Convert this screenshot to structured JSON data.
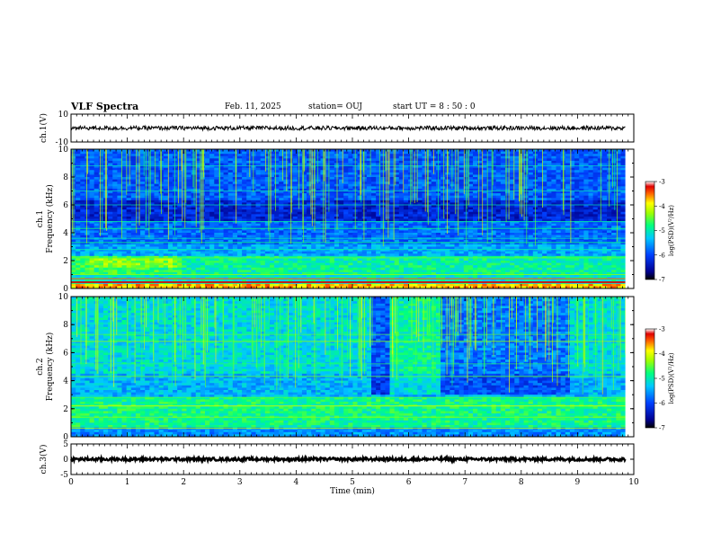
{
  "header": {
    "title": "VLF Spectra",
    "date": "Feb. 11, 2025",
    "station": "station= OUJ",
    "start": "start  UT =   8  : 50 : 0"
  },
  "chart_data": {
    "type": "heatmap",
    "xlabel": "Time (min)",
    "xlim": [
      0,
      10
    ],
    "xticks": [
      0,
      1,
      2,
      3,
      4,
      5,
      6,
      7,
      8,
      9,
      10
    ],
    "data_end_min": 9.85,
    "panels": [
      {
        "id": "ch1-waveform",
        "ylabel": "ch.1(V)",
        "ylim": [
          -10,
          10
        ],
        "yticks": [
          10,
          -10
        ],
        "trace_level": 0,
        "trace_spread": 1.5
      },
      {
        "id": "ch1-spectrogram",
        "ylabel": "ch.1",
        "ylabel2": "Frequency (kHz)",
        "ylim": [
          0,
          10
        ],
        "yticks": [
          0,
          2,
          4,
          6,
          8,
          10
        ],
        "colorbar": {
          "label": "log(PSD)(V²/Hz)",
          "ticks": [
            -3,
            -4,
            -5,
            -6,
            -7
          ],
          "range": [
            -7,
            -3
          ]
        }
      },
      {
        "id": "ch2-spectrogram",
        "ylabel": "ch.2",
        "ylabel2": "Frequency (kHz)",
        "ylim": [
          0,
          10
        ],
        "yticks": [
          0,
          2,
          4,
          6,
          8,
          10
        ],
        "colorbar": {
          "label": "log(PSD)(V²/Hz)",
          "ticks": [
            -3,
            -4,
            -5,
            -6,
            -7
          ],
          "range": [
            -7,
            -3
          ]
        }
      },
      {
        "id": "ch3-waveform",
        "ylabel": "ch.3(V)",
        "ylim": [
          -5,
          5
        ],
        "yticks": [
          5,
          0,
          -5
        ],
        "trace_level": 0,
        "trace_spread": 0.5
      }
    ]
  }
}
